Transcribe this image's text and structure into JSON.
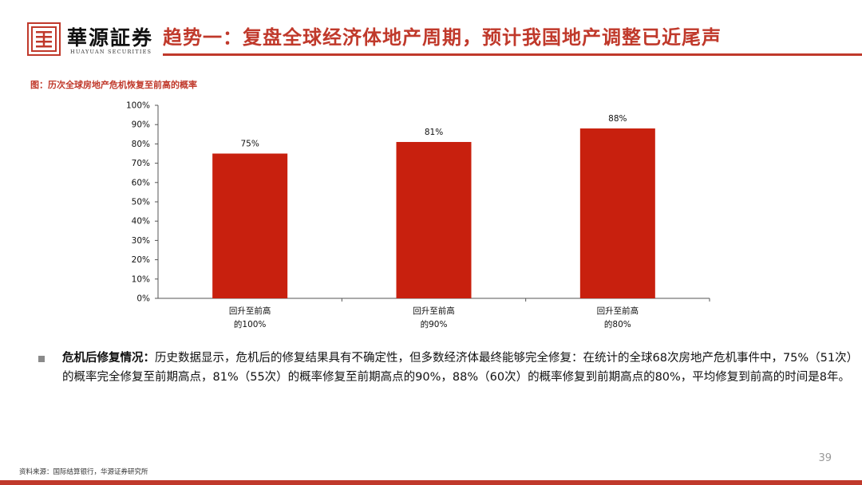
{
  "header": {
    "logo_cn": "華源証券",
    "logo_en": "HUAYUAN SECURITIES",
    "title": "趋势一：复盘全球经济体地产周期，预计我国地产调整已近尾声"
  },
  "figure_caption": "图：历次全球房地产危机恢复至前高的概率",
  "chart_data": {
    "type": "bar",
    "categories": [
      [
        "回升至前高",
        "的100%"
      ],
      [
        "回升至前高",
        "的90%"
      ],
      [
        "回升至前高",
        "的80%"
      ]
    ],
    "values": [
      75,
      81,
      88
    ],
    "value_labels": [
      "75%",
      "81%",
      "88%"
    ],
    "yticks": [
      "0%",
      "10%",
      "20%",
      "30%",
      "40%",
      "50%",
      "60%",
      "70%",
      "80%",
      "90%",
      "100%"
    ],
    "ylim": [
      0,
      100
    ],
    "grid": false,
    "bar_color": "#c8200e"
  },
  "bullet": {
    "heading": "危机后修复情况：",
    "text": "历史数据显示，危机后的修复结果具有不确定性，但多数经济体最终能够完全修复：在统计的全球68次房地产危机事件中，75%（51次）的概率完全修复至前期高点，81%（55次）的概率修复至前期高点的90%，88%（60次）的概率修复到前期高点的80%，平均修复到前高的时间是8年。"
  },
  "page_number": "39",
  "source": "资料来源：国际结算银行，华源证券研究所",
  "colors": {
    "accent": "#c0392b"
  }
}
